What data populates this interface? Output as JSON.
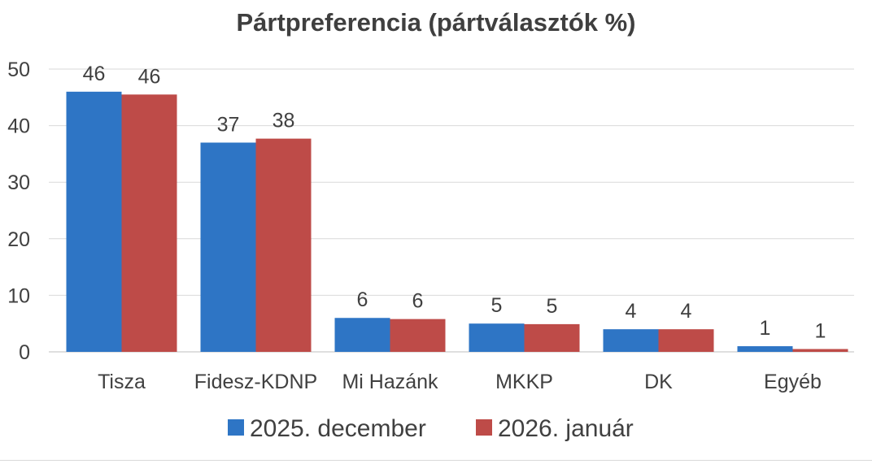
{
  "chart_data": {
    "type": "bar",
    "title": "Pártpreferencia (pártválasztók %)",
    "xlabel": "",
    "ylabel": "",
    "ylim": [
      0,
      50
    ],
    "yticks": [
      0,
      10,
      20,
      30,
      40,
      50
    ],
    "grid": true,
    "legend_position": "bottom",
    "categories": [
      "Tisza",
      "Fidesz-KDNP",
      "Mi Hazánk",
      "MKKP",
      "DK",
      "Egyéb"
    ],
    "series": [
      {
        "name": "2025. december",
        "color": "#2e75c5",
        "values": [
          46,
          37,
          6,
          5,
          4,
          1
        ],
        "labels": [
          "46",
          "37",
          "6",
          "5",
          "4",
          "1"
        ]
      },
      {
        "name": "2026. január",
        "color": "#be4b48",
        "values": [
          45.5,
          37.7,
          5.8,
          4.9,
          4.0,
          0.5
        ],
        "labels": [
          "46",
          "38",
          "6",
          "5",
          "4",
          "1"
        ]
      }
    ]
  }
}
